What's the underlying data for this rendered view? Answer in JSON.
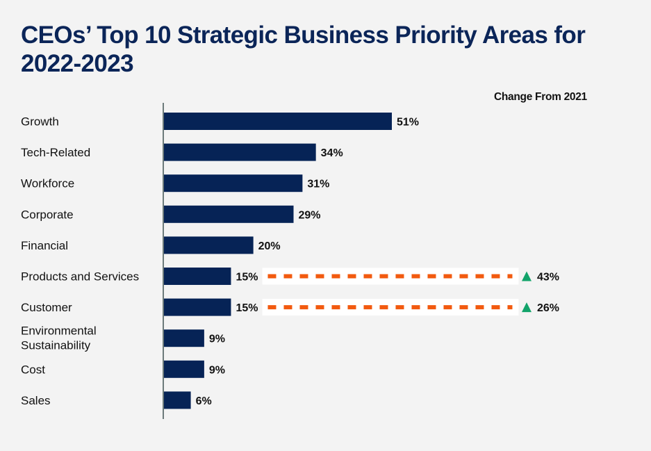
{
  "title": "CEOs’ Top 10 Strategic Business Priority Areas for 2022-2023",
  "change_header": "Change From 2021",
  "colors": {
    "bar": "#062356",
    "dash": "#f25a0f",
    "up_arrow": "#12a36a",
    "title": "#0b2558",
    "background": "#f3f3f3"
  },
  "chart_data": {
    "type": "bar",
    "orientation": "horizontal",
    "title": "CEOs’ Top 10 Strategic Business Priority Areas for 2022-2023",
    "xlabel": "",
    "ylabel": "",
    "unit": "%",
    "xlim": [
      0,
      51
    ],
    "grid": false,
    "categories": [
      "Growth",
      "Tech-Related",
      "Workforce",
      "Corporate",
      "Financial",
      "Products and Services",
      "Customer",
      "Environmental Sustainability",
      "Cost",
      "Sales"
    ],
    "category_lines": [
      [
        "Growth"
      ],
      [
        "Tech-Related"
      ],
      [
        "Workforce"
      ],
      [
        "Corporate"
      ],
      [
        "Financial"
      ],
      [
        "Products and Services"
      ],
      [
        "Customer"
      ],
      [
        "Environmental",
        "Sustainability"
      ],
      [
        "Cost"
      ],
      [
        "Sales"
      ]
    ],
    "values": [
      51,
      34,
      31,
      29,
      20,
      15,
      15,
      9,
      9,
      6
    ],
    "value_labels": [
      "51%",
      "34%",
      "31%",
      "29%",
      "20%",
      "15%",
      "15%",
      "9%",
      "9%",
      "6%"
    ],
    "change_from_2021": [
      {
        "category": "Products and Services",
        "direction": "up",
        "value": 43,
        "label": "43%"
      },
      {
        "category": "Customer",
        "direction": "up",
        "value": 26,
        "label": "26%"
      }
    ],
    "annotations": [
      "Change From 2021"
    ]
  }
}
